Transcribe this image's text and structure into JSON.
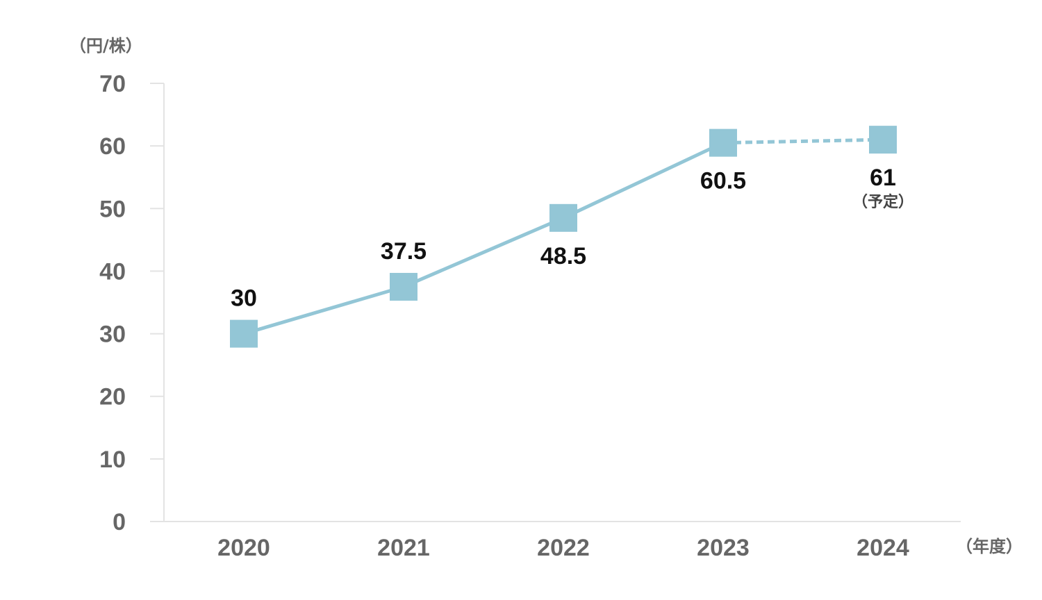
{
  "chart_data": {
    "type": "line",
    "y_unit": "（円/株）",
    "x_unit": "（年度）",
    "categories": [
      "2020",
      "2021",
      "2022",
      "2023",
      "2024"
    ],
    "series": [
      {
        "values": [
          30,
          37.5,
          48.5,
          60.5,
          61
        ],
        "labels": [
          "30",
          "37.5",
          "48.5",
          "60.5",
          "61"
        ],
        "color": "#93c6d6",
        "projected_from_index": 3
      }
    ],
    "annotations": [
      {
        "category": "2024",
        "text": "（予定）"
      }
    ],
    "ylim": [
      0,
      70
    ],
    "yticks": [
      "0",
      "10",
      "20",
      "30",
      "40",
      "50",
      "60",
      "70"
    ],
    "grid": false
  }
}
